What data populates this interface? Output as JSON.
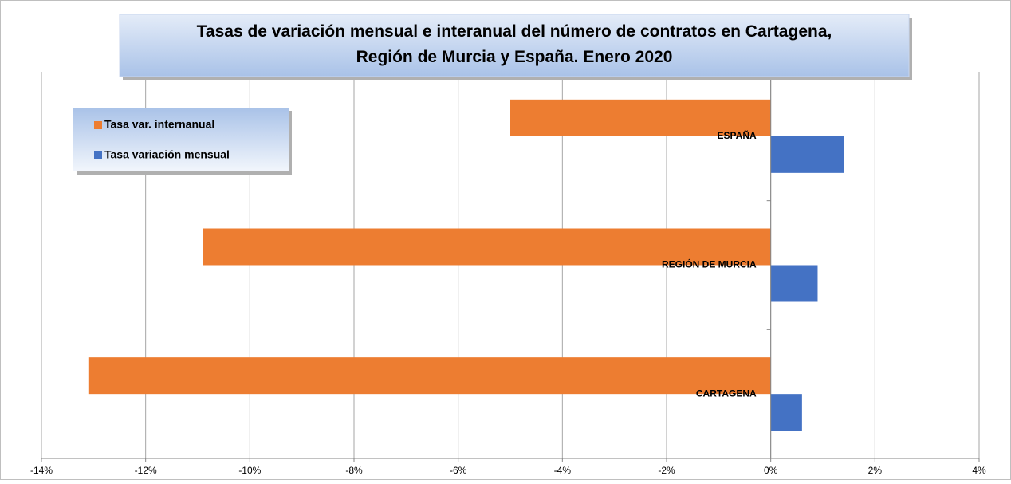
{
  "chart_data": {
    "type": "barh",
    "title": "Tasas de variación mensual e interanual del número de contratos en Cartagena, Región de Murcia y España. Enero 2020",
    "categories": [
      "ESPAÑA",
      "REGIÓN DE MURCIA",
      "CARTAGENA"
    ],
    "series": [
      {
        "name": "Tasa var. internanual",
        "color": "#ed7d31",
        "values": [
          -5.0,
          -10.9,
          -13.1
        ]
      },
      {
        "name": "Tasa variación mensual",
        "color": "#4472c4",
        "values": [
          1.4,
          0.9,
          0.6
        ]
      }
    ],
    "xlim": [
      -14,
      4
    ],
    "xticks": [
      {
        "value": -14,
        "label": "-14%"
      },
      {
        "value": -12,
        "label": "-12%"
      },
      {
        "value": -10,
        "label": "-10%"
      },
      {
        "value": -8,
        "label": "-8%"
      },
      {
        "value": -6,
        "label": "-6%"
      },
      {
        "value": -4,
        "label": "-4%"
      },
      {
        "value": -2,
        "label": "-2%"
      },
      {
        "value": 0,
        "label": "0%"
      },
      {
        "value": 2,
        "label": "2%"
      },
      {
        "value": 4,
        "label": "4%"
      }
    ],
    "grid": true,
    "legend": "upper left"
  }
}
